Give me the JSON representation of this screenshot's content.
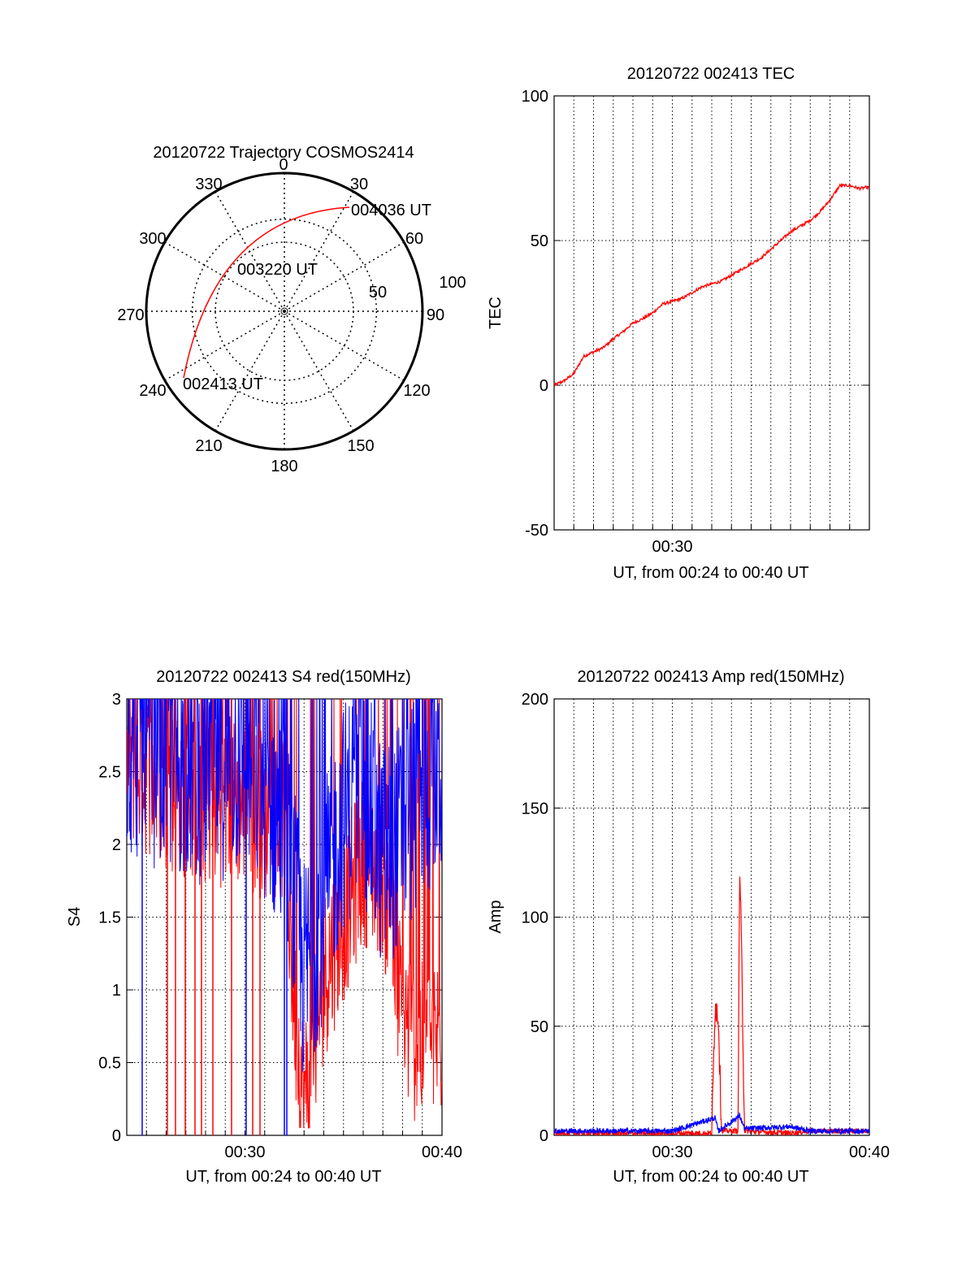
{
  "chart_data": [
    {
      "type": "polar",
      "title": "20120722 Trajectory COSMOS2414",
      "azimuth_labels": [
        "0",
        "30",
        "60",
        "90",
        "120",
        "150",
        "180",
        "210",
        "240",
        "270",
        "300",
        "330"
      ],
      "radial_labels": [
        "50",
        "100"
      ],
      "trajectory": {
        "color": "#ff0000",
        "points": [
          [
            238,
            90
          ],
          [
            260,
            71
          ],
          [
            285,
            52
          ],
          [
            307,
            40
          ],
          [
            330,
            29
          ],
          [
            345,
            21
          ],
          [
            357,
            16
          ],
          [
            8,
            12
          ],
          [
            21,
            10
          ],
          [
            28,
            9
          ]
        ]
      },
      "annotations": [
        {
          "text": "002413 UT",
          "az": 238,
          "el": 90
        },
        {
          "text": "003220 UT",
          "az": 345,
          "el": 52
        },
        {
          "text": "004036 UT",
          "az": 28,
          "el": 9
        }
      ]
    },
    {
      "type": "line",
      "title": "20120722 002413 TEC",
      "ylabel": "TEC",
      "xlabel": "UT, from 00:24 to 00:40 UT",
      "xlim": [
        "00:24",
        "00:40"
      ],
      "ylim": [
        -50,
        100
      ],
      "yticks": [
        -50,
        0,
        50,
        100
      ],
      "xticks": [
        "00:30"
      ],
      "grid": true,
      "series": [
        {
          "color": "#ff0000",
          "x": [
            "00:24",
            "00:24:30",
            "00:25",
            "00:25:30",
            "00:26",
            "00:26:30",
            "00:27",
            "00:27:30",
            "00:28",
            "00:28:30",
            "00:29",
            "00:29:30",
            "00:30",
            "00:30:30",
            "00:31",
            "00:31:30",
            "00:32",
            "00:32:30",
            "00:33",
            "00:33:30",
            "00:34",
            "00:34:30",
            "00:35",
            "00:35:30",
            "00:36",
            "00:36:30",
            "00:37",
            "00:37:30",
            "00:38",
            "00:38:30",
            "00:39",
            "00:39:30",
            "00:40"
          ],
          "values": [
            0,
            1.5,
            4,
            10,
            11.5,
            13,
            16,
            18.5,
            21.5,
            23,
            25,
            28,
            29,
            30,
            32,
            34,
            35,
            36,
            38,
            40,
            42,
            44,
            47,
            50,
            53,
            55,
            57,
            60,
            64,
            69,
            69,
            68,
            68.5
          ]
        }
      ]
    },
    {
      "type": "line",
      "title": "20120722 002413 S4 red(150MHz)",
      "ylabel": "S4",
      "xlabel": "UT, from 00:24 to 00:40 UT",
      "xlim": [
        "00:24",
        "00:40"
      ],
      "ylim": [
        0,
        3
      ],
      "yticks": [
        "0",
        "0.5",
        "1",
        "1.5",
        "2",
        "2.5",
        "3"
      ],
      "xticks": [
        "00:30",
        "00:40"
      ],
      "grid": true,
      "series": [
        {
          "color": "#ff0000",
          "x": [
            "00:24",
            "00:26",
            "00:28",
            "00:30",
            "00:31",
            "00:32",
            "00:32:30",
            "00:33",
            "00:34",
            "00:35",
            "00:36",
            "00:37",
            "00:38",
            "00:39",
            "00:40"
          ],
          "values": [
            2.6,
            2.4,
            2.3,
            2.3,
            2.2,
            2.2,
            0.9,
            0.2,
            1.1,
            1.5,
            1.9,
            1.8,
            0.8,
            0.6,
            0.7
          ]
        },
        {
          "color": "#0000ff",
          "x": [
            "00:24",
            "00:26",
            "00:28",
            "00:30",
            "00:31",
            "00:32",
            "00:33",
            "00:34",
            "00:35",
            "00:36",
            "00:37",
            "00:38",
            "00:39",
            "00:40"
          ],
          "values": [
            2.7,
            2.6,
            2.5,
            2.6,
            2.4,
            2.1,
            1.1,
            1.6,
            2.2,
            2.4,
            1.9,
            2.1,
            2.4,
            2.5
          ]
        }
      ]
    },
    {
      "type": "line",
      "title": "20120722 002413 Amp red(150MHz)",
      "ylabel": "Amp",
      "xlabel": "UT, from 00:24 to 00:40 UT",
      "xlim": [
        "00:24",
        "00:40"
      ],
      "ylim": [
        0,
        200
      ],
      "yticks": [
        0,
        50,
        100,
        150,
        200
      ],
      "xticks": [
        "00:30",
        "00:40"
      ],
      "grid": true,
      "series": [
        {
          "color": "#ff0000",
          "x": [
            "00:24",
            "00:30",
            "00:32:00",
            "00:32:10",
            "00:32:20",
            "00:32:30",
            "00:33:20",
            "00:33:25",
            "00:33:30",
            "00:33:40",
            "00:36",
            "00:37",
            "00:40"
          ],
          "values": [
            1,
            1,
            1,
            60,
            55,
            2,
            2,
            125,
            90,
            2,
            1,
            2,
            2
          ]
        },
        {
          "color": "#0000ff",
          "x": [
            "00:24",
            "00:30",
            "00:32:10",
            "00:32:20",
            "00:33:25",
            "00:33:40",
            "00:36",
            "00:37",
            "00:40"
          ],
          "values": [
            2,
            2,
            8,
            2,
            9,
            3,
            4,
            2,
            2
          ]
        }
      ]
    }
  ]
}
